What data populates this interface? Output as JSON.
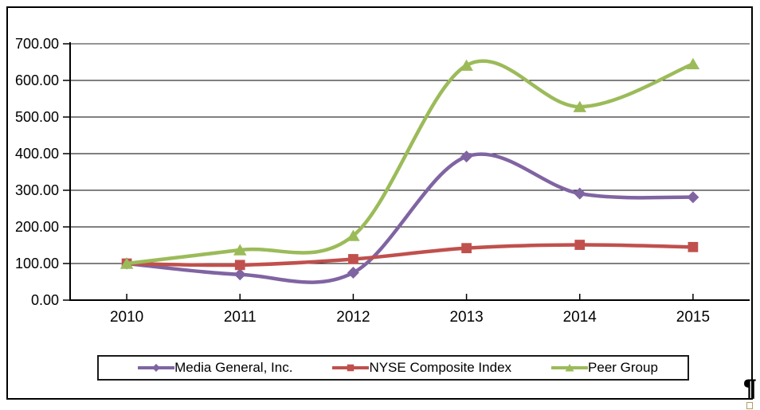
{
  "chart_data": {
    "type": "line",
    "categories": [
      "2010",
      "2011",
      "2012",
      "2013",
      "2014",
      "2015"
    ],
    "series": [
      {
        "name": "Media General, Inc.",
        "color": "#8064A2",
        "marker": "diamond",
        "values": [
          100,
          70,
          75,
          392,
          291,
          281
        ]
      },
      {
        "name": "NYSE Composite Index",
        "color": "#C0504D",
        "marker": "square",
        "values": [
          100,
          96,
          112,
          142,
          151,
          145
        ]
      },
      {
        "name": "Peer Group",
        "color": "#9BBB59",
        "marker": "triangle",
        "values": [
          100,
          137,
          176,
          641,
          528,
          645
        ]
      }
    ],
    "title": "",
    "xlabel": "",
    "ylabel": "",
    "ylim": [
      0,
      700
    ],
    "ytick_step": 100,
    "ytick_labels": [
      "0.00",
      "100.00",
      "200.00",
      "300.00",
      "400.00",
      "500.00",
      "600.00",
      "700.00"
    ],
    "grid": true,
    "smoothed_lines": true,
    "legend_position": "bottom",
    "gridline_color": "#000000",
    "top_gridline_color": "#969696",
    "axis_color": "#000000"
  },
  "artifacts": {
    "paragraph_mark": "¶"
  }
}
